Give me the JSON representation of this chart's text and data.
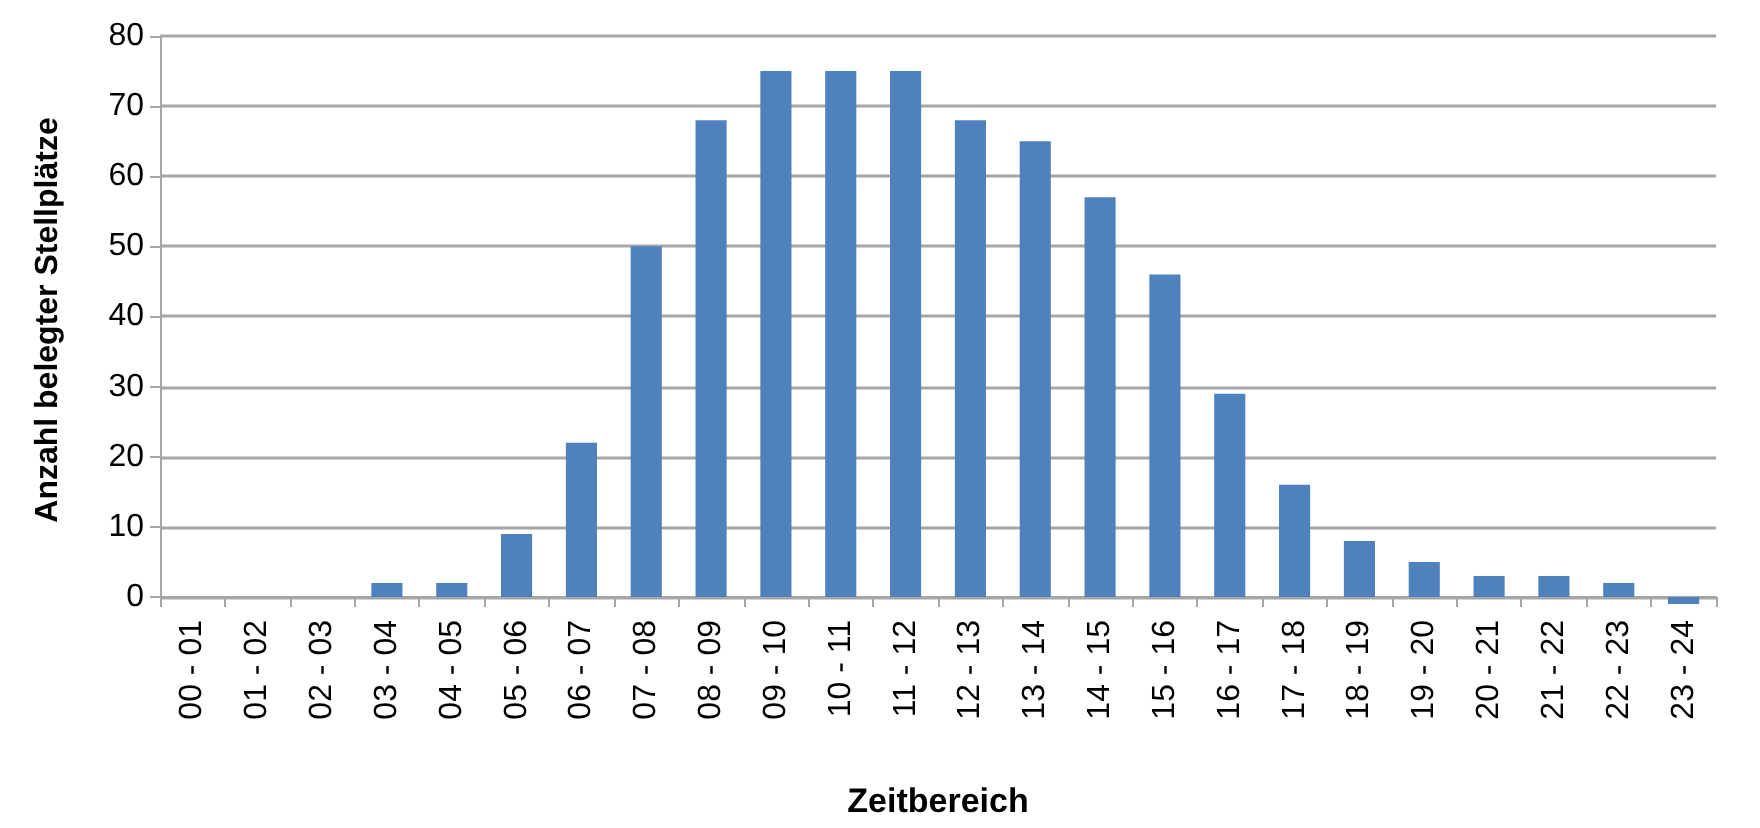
{
  "chart_data": {
    "type": "bar",
    "xlabel": "Zeitbereich",
    "ylabel": "Anzahl belegter Stellplätze",
    "categories": [
      "00 - 01",
      "01 - 02",
      "02 - 03",
      "03 - 04",
      "04 - 05",
      "05 - 06",
      "06 - 07",
      "07 - 08",
      "08 - 09",
      "09 - 10",
      "10 - 11",
      "11 - 12",
      "12 - 13",
      "13 - 14",
      "14 - 15",
      "15 - 16",
      "16 - 17",
      "17 - 18",
      "18 - 19",
      "19 - 20",
      "20 - 21",
      "21 - 22",
      "22 - 23",
      "23 - 24"
    ],
    "values": [
      0,
      0,
      0,
      2,
      2,
      9,
      22,
      50,
      68,
      75,
      75,
      75,
      68,
      65,
      57,
      46,
      29,
      16,
      8,
      5,
      3,
      3,
      2,
      -1
    ],
    "color": "#4f81bd",
    "ylim": [
      -1,
      80
    ],
    "yticks": [
      0,
      10,
      20,
      30,
      40,
      50,
      60,
      70,
      80
    ],
    "grid": "y"
  }
}
